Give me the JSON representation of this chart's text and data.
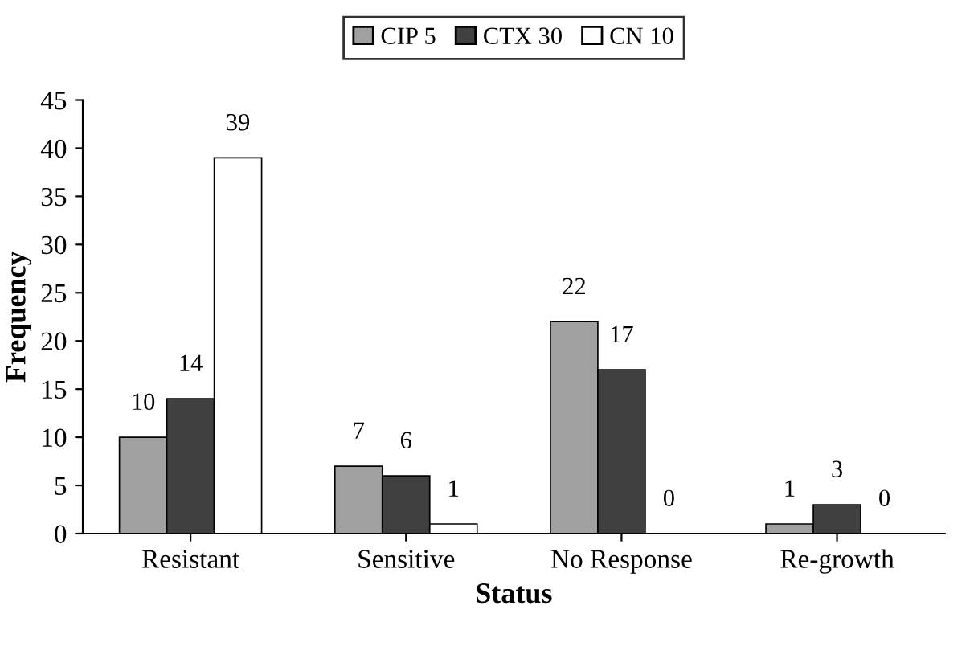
{
  "chart_data": {
    "type": "bar",
    "xlabel": "Status",
    "ylabel": "Frequency",
    "categories": [
      "Resistant",
      "Sensitive",
      "No Response",
      "Re-growth"
    ],
    "series": [
      {
        "name": "CIP 5",
        "color": "#a0a0a0",
        "values": [
          10,
          7,
          22,
          1
        ]
      },
      {
        "name": "CTX 30",
        "color": "#404040",
        "values": [
          14,
          6,
          17,
          3
        ]
      },
      {
        "name": "CN 10",
        "color": "#ffffff",
        "values": [
          39,
          1,
          0,
          0
        ]
      }
    ],
    "ylim": [
      0,
      45
    ],
    "yticks": [
      0,
      5,
      10,
      15,
      20,
      25,
      30,
      35,
      40,
      45
    ],
    "data_labels": true,
    "legend": "top",
    "grid": false
  }
}
